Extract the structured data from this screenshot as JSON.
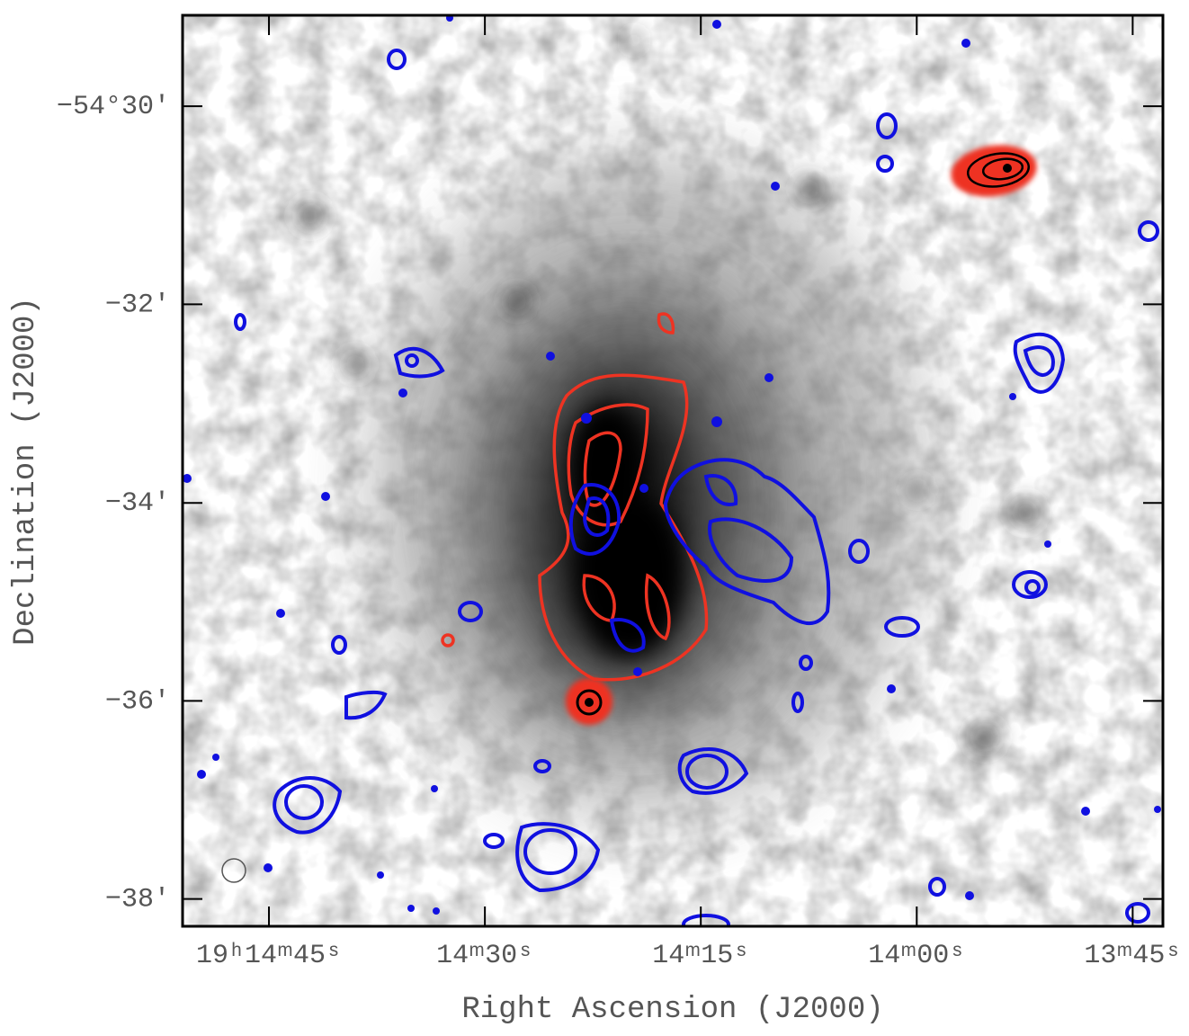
{
  "chart_data": {
    "type": "image",
    "x_label": "Right Ascension (J2000)",
    "y_label": "Declination (J2000)",
    "xlim": [
      891,
      822.9
    ],
    "xticks": [
      {
        "value": 885,
        "label": "19ʰ14ᵐ45ˢ"
      },
      {
        "value": 870,
        "label": "14ᵐ30ˢ"
      },
      {
        "value": 855,
        "label": "14ᵐ15ˢ"
      },
      {
        "value": 840,
        "label": "14ᵐ00ˢ"
      },
      {
        "value": 825,
        "label": "13ᵐ45ˢ"
      }
    ],
    "ylim": [
      -54.6379,
      -54.4847
    ],
    "yticks": [
      {
        "value": -54.5,
        "label": "−54°30′"
      },
      {
        "value": -54.5333,
        "label": "−32′"
      },
      {
        "value": -54.5667,
        "label": "−34′"
      },
      {
        "value": -54.6,
        "label": "−36′"
      },
      {
        "value": -54.6333,
        "label": "−38′"
      }
    ]
  }
}
